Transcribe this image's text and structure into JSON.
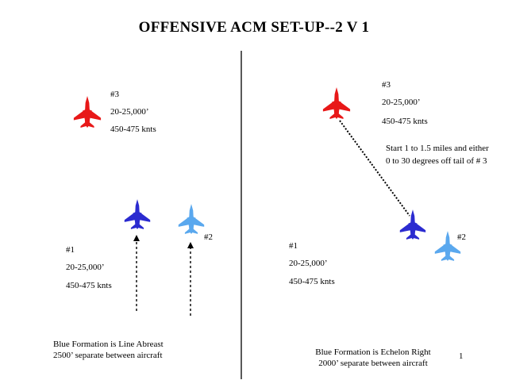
{
  "title": "OFFENSIVE  ACM SET-UP--2 V 1",
  "page_number": "1",
  "colors": {
    "bandit": "#e81818",
    "lead": "#2b2bd0",
    "wingman": "#5aa8ee"
  },
  "left_panel": {
    "bandit": {
      "id": "#3",
      "altitude": "20-25,000’",
      "speed": "450-475 knts"
    },
    "lead": {
      "id": "#1",
      "altitude": "20-25,000’",
      "speed": "450-475 knts"
    },
    "wingman": {
      "id": "#2"
    },
    "caption_line1": "Blue Formation is Line Abreast",
    "caption_line2": "2500’ separate between aircraft"
  },
  "right_panel": {
    "bandit": {
      "id": "#3",
      "altitude": "20-25,000’",
      "speed": "450-475 knts"
    },
    "lead": {
      "id": "#1",
      "altitude": "20-25,000’",
      "speed": "450-475 knts"
    },
    "wingman": {
      "id": "#2"
    },
    "note_line1": "Start 1 to 1.5 miles and either",
    "note_line2": "0 to 30 degrees off tail of # 3",
    "caption_line1": "Blue Formation is Echelon Right",
    "caption_line2": "2000’ separate between aircraft"
  }
}
